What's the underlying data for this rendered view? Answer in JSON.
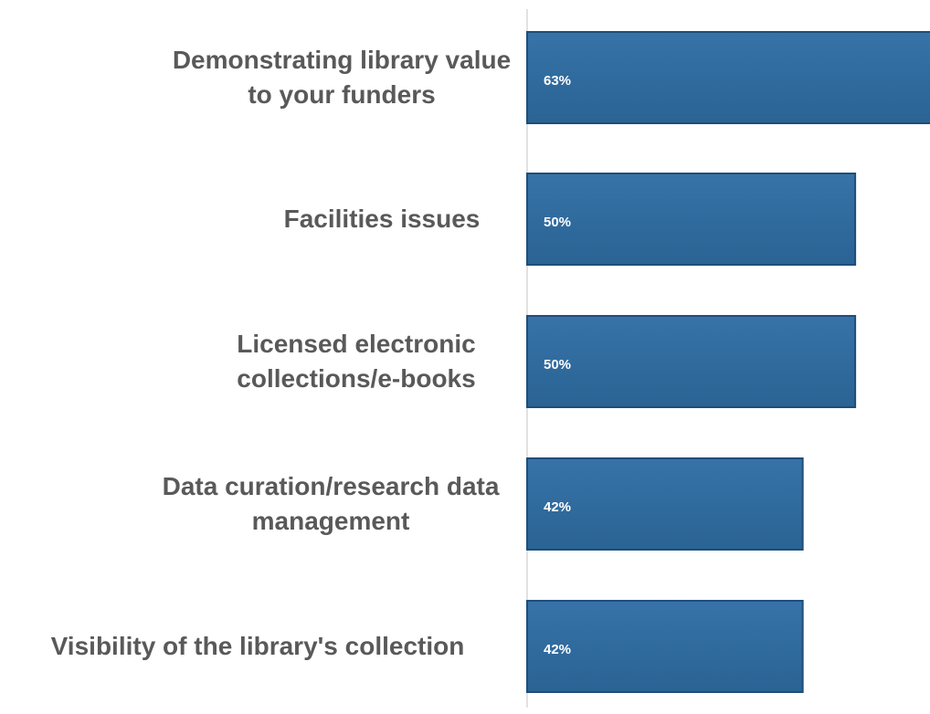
{
  "chart_data": {
    "type": "bar",
    "orientation": "horizontal",
    "categories": [
      "Demonstrating library value to your funders",
      "Facilities issues",
      "Licensed electronic collections/e-books",
      "Data curation/research data management",
      "Visibility of the library's collection"
    ],
    "values": [
      63,
      50,
      50,
      42,
      42
    ],
    "value_labels": [
      "63%",
      "50%",
      "50%",
      "42%",
      "42%"
    ],
    "color": "#2e6a9e",
    "xlim": [
      0,
      61.4
    ]
  }
}
